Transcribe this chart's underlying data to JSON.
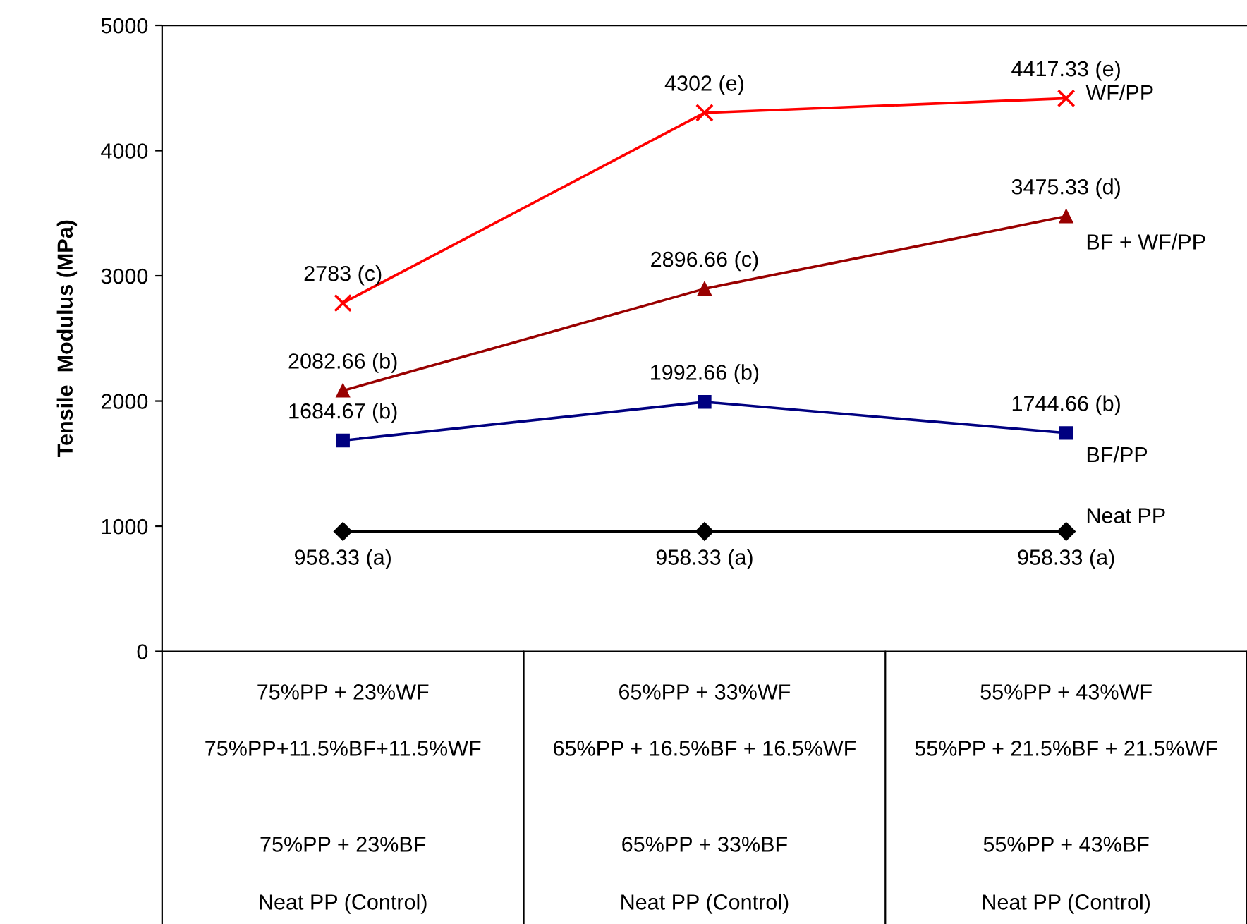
{
  "chart_data": {
    "type": "line",
    "ylabel": "Tensile  Modulus (MPa)",
    "categories": [
      "75%PP + 23%WF\n75%PP+11.5%BF+11.5%WF\n75%PP + 23%BF\nNeat PP (Control)",
      "65%PP + 33%WF\n65%PP + 16.5%BF + 16.5%WF\n65%PP + 33%BF\nNeat PP (Control)",
      "55%PP + 43%WF\n55%PP + 21.5%BF + 21.5%WF\n55%PP + 43%BF\nNeat PP (Control)"
    ],
    "series": [
      {
        "name": "WF/PP",
        "color": "#ff0000",
        "marker": "cross",
        "values": [
          2783,
          4302,
          4417.33
        ],
        "value_labels": [
          "2783 (c)",
          "4302 (e)",
          "4417.33 (e)"
        ]
      },
      {
        "name": "BF + WF/PP",
        "color": "#990000",
        "marker": "triangle",
        "values": [
          2082.66,
          2896.66,
          3475.33
        ],
        "value_labels": [
          "2082.66 (b)",
          "2896.66 (c)",
          "3475.33 (d)"
        ]
      },
      {
        "name": "BF/PP",
        "color": "#000080",
        "marker": "square",
        "values": [
          1684.67,
          1992.66,
          1744.66
        ],
        "value_labels": [
          "1684.67 (b)",
          "1992.66 (b)",
          "1744.66 (b)"
        ]
      },
      {
        "name": "Neat PP",
        "color": "#000000",
        "marker": "diamond",
        "values": [
          958.33,
          958.33,
          958.33
        ],
        "value_labels": [
          "958.33 (a)",
          "958.33 (a)",
          "958.33 (a)"
        ]
      }
    ],
    "ylim": [
      0,
      5000
    ],
    "yticks": [
      0,
      1000,
      2000,
      3000,
      4000,
      5000
    ],
    "grid": false,
    "legend": false
  }
}
